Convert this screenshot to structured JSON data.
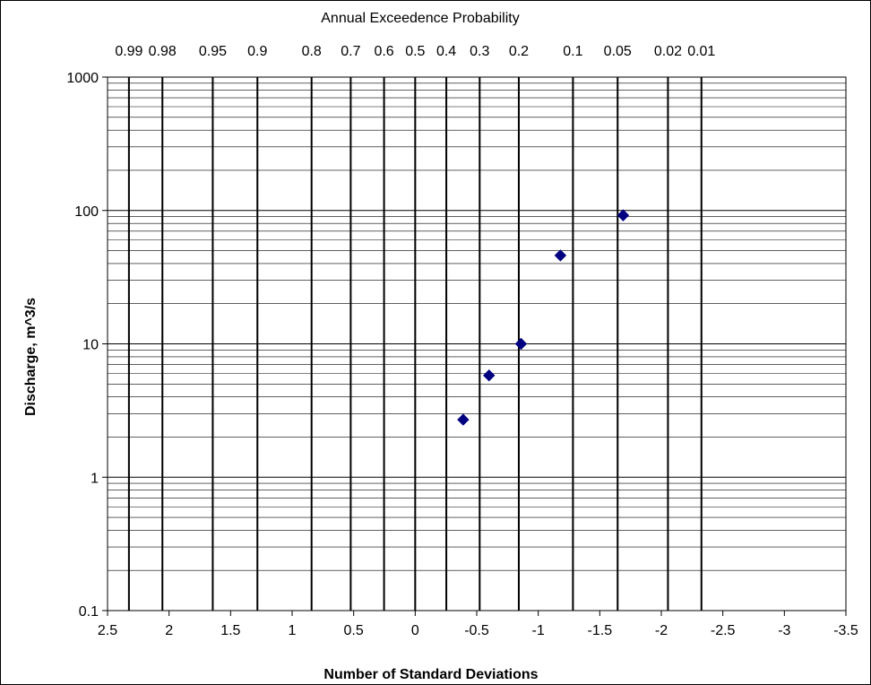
{
  "chart_data": {
    "type": "scatter",
    "title": "Annual Exceedence Probability",
    "xlabel": "Number of Standard Deviations",
    "ylabel": "Discharge, m^3/s",
    "x_reversed": true,
    "xlim": [
      2.5,
      -3.5
    ],
    "x_ticks": [
      2.5,
      2,
      1.5,
      1,
      0.5,
      0,
      -0.5,
      -1,
      -1.5,
      -2,
      -2.5,
      -3,
      -3.5
    ],
    "x_tick_labels": [
      "2.5",
      "2",
      "1.5",
      "1",
      "0.5",
      "0",
      "-0.5",
      "-1",
      "-1.5",
      "-2",
      "-2.5",
      "-3",
      "-3.5"
    ],
    "y_scale": "log",
    "ylim": [
      0.1,
      1000
    ],
    "y_ticks": [
      0.1,
      1,
      10,
      100,
      1000
    ],
    "y_tick_labels": [
      "0.1",
      "1",
      "10",
      "100",
      "1000"
    ],
    "probability_axis": {
      "labels": [
        "0.99",
        "0.98",
        "0.95",
        "0.9",
        "0.8",
        "0.7",
        "0.6",
        "0.5",
        "0.4",
        "0.3",
        "0.2",
        "0.1",
        "0.05",
        "0.02",
        "0.01"
      ],
      "z": [
        2.326,
        2.054,
        1.645,
        1.282,
        0.842,
        0.524,
        0.253,
        0,
        -0.253,
        -0.524,
        -0.842,
        -1.282,
        -1.645,
        -2.054,
        -2.326
      ]
    },
    "grid": true,
    "marker_color": "#000080",
    "marker": "diamond",
    "series": [
      {
        "x": [
          -0.39,
          -0.6,
          -0.86,
          -1.18,
          -1.69
        ],
        "y": [
          2.7,
          5.8,
          10,
          46,
          92
        ]
      }
    ]
  }
}
